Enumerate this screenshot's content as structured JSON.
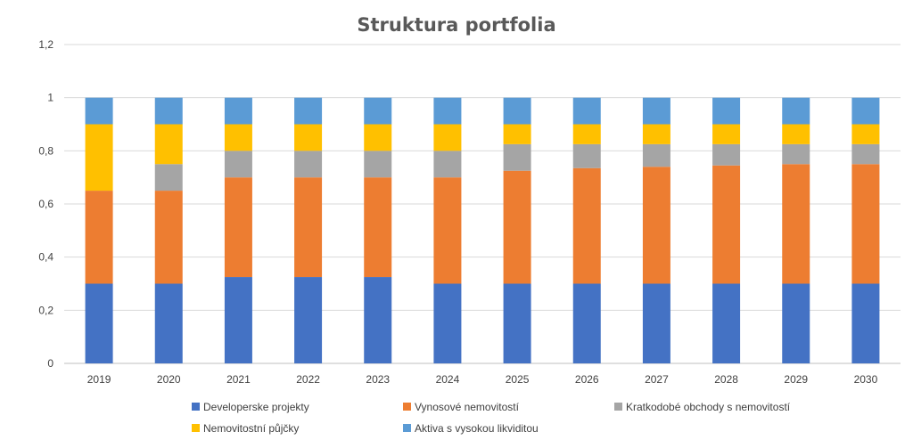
{
  "chart_data": {
    "type": "bar",
    "stacked": true,
    "title": "Struktura portfolia",
    "xlabel": "",
    "ylabel": "",
    "categories": [
      "2019",
      "2020",
      "2021",
      "2022",
      "2023",
      "2024",
      "2025",
      "2026",
      "2027",
      "2028",
      "2029",
      "2030"
    ],
    "ylim": [
      0,
      1.2
    ],
    "yticks": [
      "0",
      "0,2",
      "0,4",
      "0,6",
      "0,8",
      "1",
      "1,2"
    ],
    "grid": true,
    "legend_position": "bottom",
    "series": [
      {
        "name": "Developerske projekty",
        "color": "#4472C4",
        "values": [
          0.3,
          0.3,
          0.325,
          0.325,
          0.325,
          0.3,
          0.3,
          0.3,
          0.3,
          0.3,
          0.3,
          0.3
        ]
      },
      {
        "name": "Vynosové nemovitostí",
        "color": "#ED7D31",
        "values": [
          0.35,
          0.35,
          0.375,
          0.375,
          0.375,
          0.4,
          0.425,
          0.435,
          0.44,
          0.445,
          0.45,
          0.45
        ]
      },
      {
        "name": "Kratkodobé obchody s nemovitostí",
        "color": "#A5A5A5",
        "values": [
          0.0,
          0.1,
          0.1,
          0.1,
          0.1,
          0.1,
          0.1,
          0.09,
          0.085,
          0.08,
          0.075,
          0.075
        ]
      },
      {
        "name": "Nemovitostní půjčky",
        "color": "#FFC000",
        "values": [
          0.25,
          0.15,
          0.1,
          0.1,
          0.1,
          0.1,
          0.075,
          0.075,
          0.075,
          0.075,
          0.075,
          0.075
        ]
      },
      {
        "name": "Aktiva s vysokou likviditou",
        "color": "#5B9BD5",
        "values": [
          0.1,
          0.1,
          0.1,
          0.1,
          0.1,
          0.1,
          0.1,
          0.1,
          0.1,
          0.1,
          0.1,
          0.1
        ]
      }
    ]
  }
}
